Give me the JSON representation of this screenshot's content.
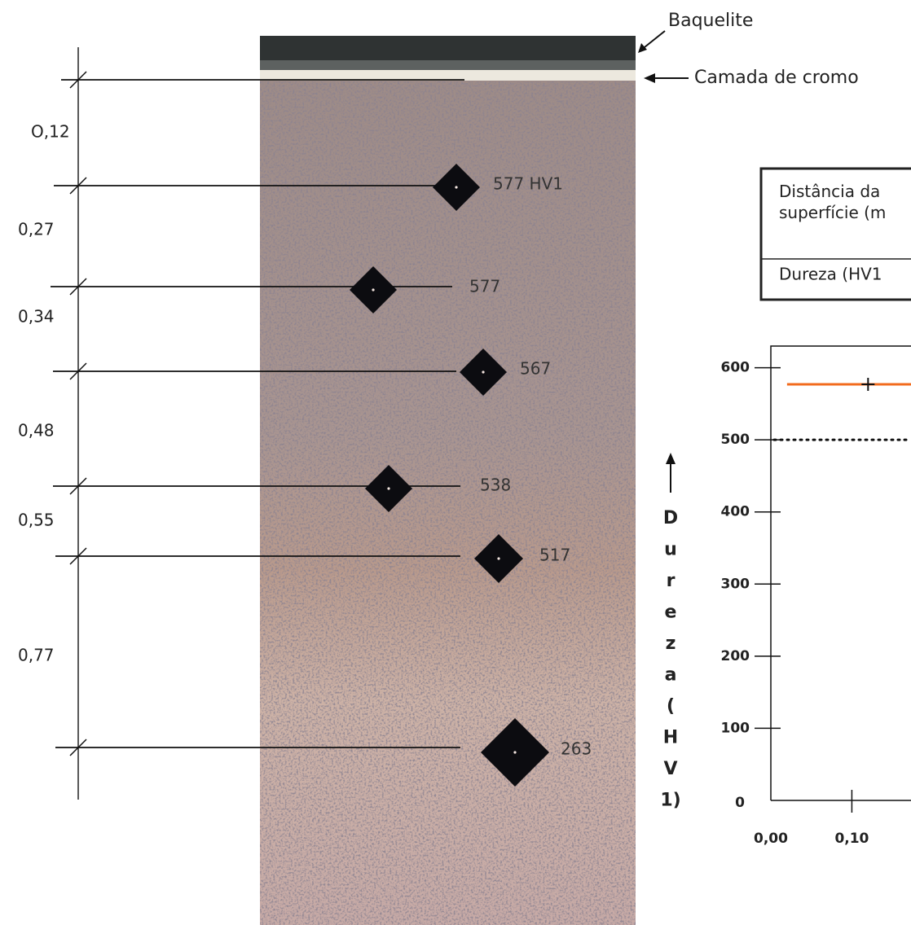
{
  "annotations": {
    "bakelite": "Baquelite",
    "chromium_layer": "Camada de cromo"
  },
  "dimensions": [
    "O,12",
    "0,27",
    "0,34",
    "0,48",
    "0,55",
    "0,77"
  ],
  "indentations": [
    "577 HV1",
    "577",
    "567",
    "538",
    "517",
    "263"
  ],
  "table": {
    "rows": [
      [
        "Distância da superfície (m"
      ],
      [
        "Dureza (HV1"
      ]
    ]
  },
  "chart_data": {
    "type": "line",
    "y_label": "Dureza (HV1)",
    "x": [
      0.02,
      0.12,
      0.173
    ],
    "series": [
      {
        "color": "#f26b1d",
        "values": [
          577,
          577,
          577
        ]
      }
    ],
    "marker": {
      "x": 0.12,
      "y": 577
    },
    "reference_line": {
      "value": 500,
      "style": "dotted"
    },
    "xlim": [
      0,
      0.173
    ],
    "ylim": [
      0,
      630
    ],
    "xticks": [
      {
        "value": 0,
        "label": "0,00"
      },
      {
        "value": 0.1,
        "label": "0,10"
      }
    ],
    "yticks": [
      0,
      100,
      200,
      300,
      400,
      500,
      600
    ]
  }
}
